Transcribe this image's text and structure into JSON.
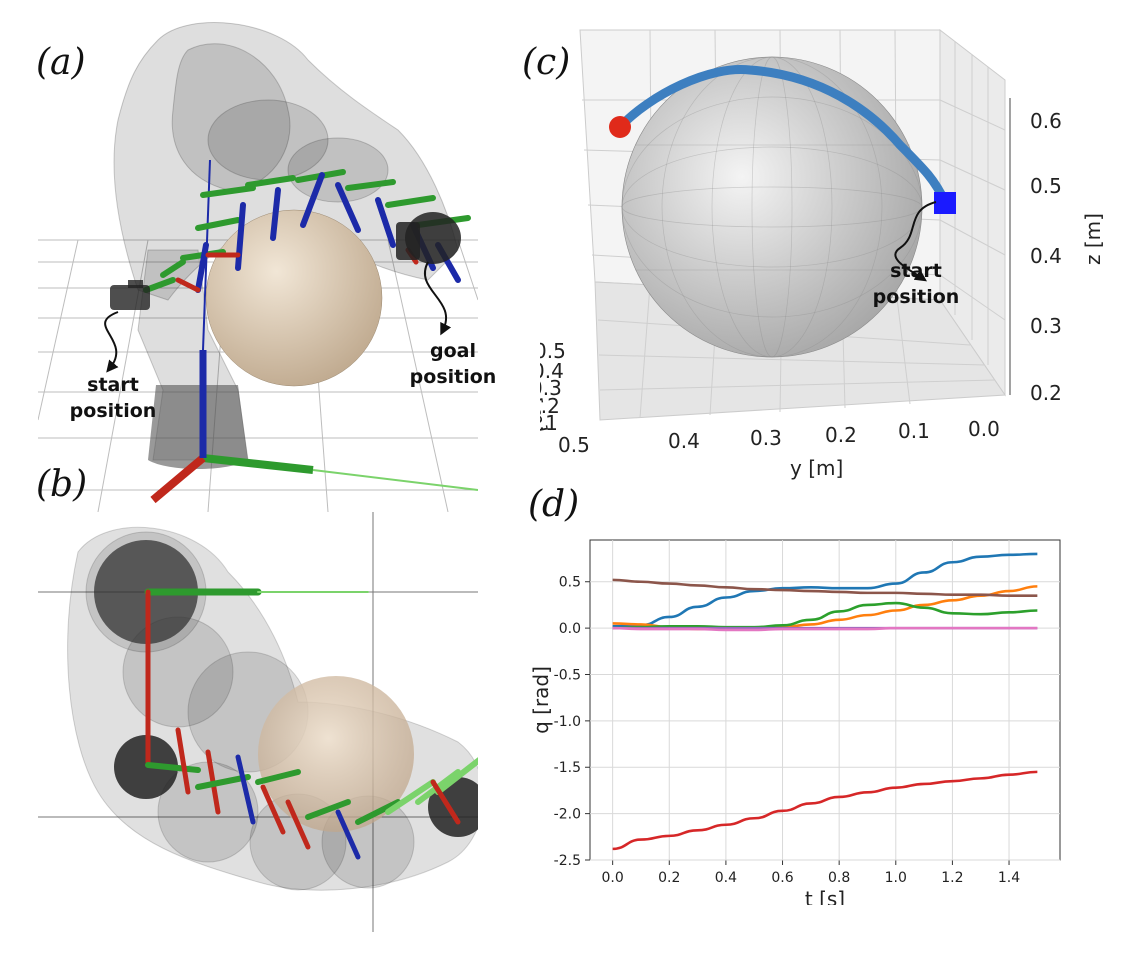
{
  "panels": {
    "a": {
      "label": "(a)",
      "start_label": "start\nposition",
      "start_l1": "start",
      "start_l2": "position",
      "goal_l1": "goal",
      "goal_l2": "position"
    },
    "b": {
      "label": "(b)"
    },
    "c": {
      "label": "(c)",
      "start_l1": "start",
      "start_l2": "position",
      "x_axis_label": "x [m]",
      "y_axis_label": "y [m]",
      "z_axis_label": "z [m]",
      "x_ticks": [
        "0.5",
        "0.4",
        "0.3",
        "0.2",
        "0.1"
      ],
      "y_ticks": [
        "0.5",
        "0.4",
        "0.3",
        "0.2",
        "0.1",
        "0.0"
      ],
      "z_ticks": [
        "0.6",
        "0.5",
        "0.4",
        "0.3",
        "0.2"
      ],
      "colors": {
        "path": "#3d7fc0",
        "start_marker": "#1a1aff",
        "goal_marker": "#e02a1a",
        "sphere": "#c8c8c8"
      }
    },
    "d": {
      "label": "(d)"
    }
  },
  "chart_data": {
    "type": "line",
    "xlabel": "t [s]",
    "ylabel": "q [rad]",
    "xlim": [
      -0.08,
      1.58
    ],
    "ylim": [
      -2.5,
      0.95
    ],
    "xticks": [
      0.0,
      0.2,
      0.4,
      0.6,
      0.8,
      1.0,
      1.2,
      1.4
    ],
    "yticks": [
      0.5,
      0.0,
      -0.5,
      -1.0,
      -1.5,
      -2.0,
      -2.5
    ],
    "grid": true,
    "x": [
      0.0,
      0.1,
      0.2,
      0.3,
      0.4,
      0.5,
      0.6,
      0.7,
      0.8,
      0.9,
      1.0,
      1.1,
      1.2,
      1.3,
      1.4,
      1.5
    ],
    "series": [
      {
        "color": "#1f77b4",
        "values": [
          0.02,
          0.03,
          0.12,
          0.23,
          0.33,
          0.4,
          0.43,
          0.44,
          0.43,
          0.43,
          0.48,
          0.6,
          0.71,
          0.77,
          0.79,
          0.8
        ]
      },
      {
        "color": "#ff7f0e",
        "values": [
          0.05,
          0.04,
          0.01,
          -0.01,
          -0.01,
          0.0,
          0.01,
          0.04,
          0.09,
          0.14,
          0.19,
          0.25,
          0.3,
          0.35,
          0.4,
          0.45
        ]
      },
      {
        "color": "#2ca02c",
        "values": [
          0.0,
          0.01,
          0.02,
          0.02,
          0.01,
          0.01,
          0.03,
          0.09,
          0.18,
          0.25,
          0.27,
          0.22,
          0.16,
          0.15,
          0.17,
          0.19
        ]
      },
      {
        "color": "#d62728",
        "values": [
          -2.38,
          -2.28,
          -2.24,
          -2.18,
          -2.12,
          -2.05,
          -1.97,
          -1.89,
          -1.82,
          -1.77,
          -1.72,
          -1.68,
          -1.65,
          -1.62,
          -1.58,
          -1.55
        ]
      },
      {
        "color": "#9467bd",
        "values": [
          0.0,
          0.0,
          0.0,
          0.0,
          0.0,
          0.0,
          0.0,
          0.0,
          0.0,
          0.0,
          0.0,
          0.0,
          0.0,
          0.0,
          0.0,
          0.0
        ]
      },
      {
        "color": "#8c564b",
        "values": [
          0.52,
          0.5,
          0.48,
          0.46,
          0.44,
          0.42,
          0.41,
          0.4,
          0.39,
          0.38,
          0.38,
          0.37,
          0.36,
          0.36,
          0.35,
          0.35
        ]
      },
      {
        "color": "#e377c2",
        "values": [
          0.0,
          -0.01,
          -0.01,
          -0.01,
          -0.02,
          -0.02,
          -0.01,
          -0.01,
          -0.01,
          -0.01,
          0.0,
          0.0,
          0.0,
          0.0,
          0.0,
          0.0
        ]
      }
    ]
  }
}
